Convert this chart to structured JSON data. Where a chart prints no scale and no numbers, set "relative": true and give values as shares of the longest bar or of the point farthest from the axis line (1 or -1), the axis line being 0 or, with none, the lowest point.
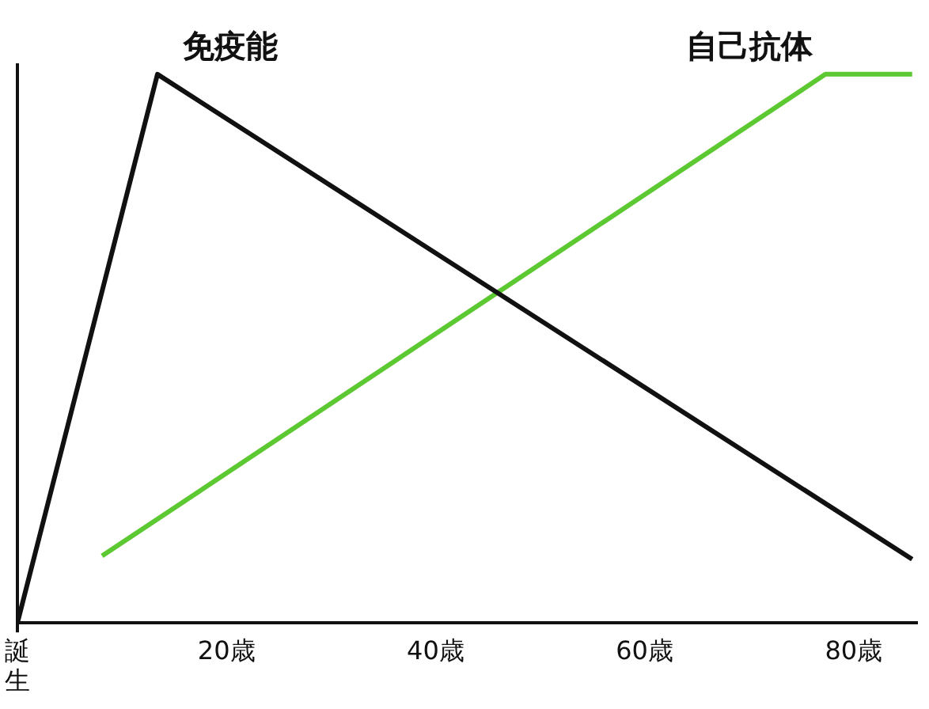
{
  "chart_data": {
    "type": "line",
    "relative": true,
    "xlim": [
      0,
      86
    ],
    "xticks": [
      {
        "value": 0,
        "label": "誕生"
      },
      {
        "value": 20,
        "label": "20歳"
      },
      {
        "value": 40,
        "label": "40歳"
      },
      {
        "value": 60,
        "label": "60歳"
      },
      {
        "value": 80,
        "label": "80歳"
      }
    ],
    "grid": false,
    "legend": false,
    "marker": "none",
    "series": [
      {
        "name": "免疫能",
        "color": "#111111",
        "x": [
          0,
          13.4,
          85.6
        ],
        "values": [
          0,
          1,
          0.116
        ]
      },
      {
        "name": "自己抗体",
        "color": "#5cc832",
        "x": [
          8.1,
          77.3,
          85.6
        ],
        "values": [
          0.122,
          1,
          1
        ]
      }
    ]
  }
}
